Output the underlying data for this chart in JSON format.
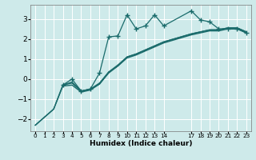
{
  "xlabel": "Humidex (Indice chaleur)",
  "bg_color": "#ceeaea",
  "line_color": "#1a6b6b",
  "grid_color": "#ffffff",
  "xlim": [
    -0.5,
    23.5
  ],
  "ylim": [
    -2.6,
    3.7
  ],
  "yticks": [
    -2,
    -1,
    0,
    1,
    2,
    3
  ],
  "xtick_positions": [
    0,
    1,
    2,
    3,
    4,
    5,
    6,
    7,
    8,
    9,
    10,
    11,
    12,
    13,
    14,
    17,
    18,
    19,
    20,
    21,
    22,
    23
  ],
  "xtick_labels": [
    "0",
    "1",
    "2",
    "3",
    "4",
    "5",
    "6",
    "7",
    "8",
    "9",
    "10",
    "11",
    "12",
    "13",
    "14",
    "17",
    "18",
    "19",
    "20",
    "21",
    "22",
    "23"
  ],
  "series": [
    {
      "x": [
        0,
        1,
        2,
        3,
        4,
        5,
        6,
        7,
        8,
        9,
        10,
        11,
        12,
        13,
        14,
        17,
        18,
        19,
        20,
        21,
        22,
        23
      ],
      "y": [
        -2.3,
        -1.9,
        -1.5,
        -0.35,
        -0.3,
        -0.65,
        -0.55,
        -0.25,
        0.3,
        0.65,
        1.05,
        1.2,
        1.4,
        1.6,
        1.8,
        2.2,
        2.3,
        2.4,
        2.4,
        2.5,
        2.5,
        2.3
      ],
      "marker": null,
      "linestyle": "-",
      "lw": 1.0
    },
    {
      "x": [
        0,
        1,
        2,
        3,
        4,
        5,
        6,
        7,
        8,
        9,
        10,
        11,
        12,
        13,
        14,
        17,
        18,
        19,
        20,
        21,
        22,
        23
      ],
      "y": [
        -2.3,
        -1.9,
        -1.5,
        -0.3,
        -0.2,
        -0.6,
        -0.5,
        -0.2,
        0.35,
        0.7,
        1.1,
        1.25,
        1.45,
        1.65,
        1.85,
        2.25,
        2.35,
        2.45,
        2.45,
        2.55,
        2.55,
        2.35
      ],
      "marker": null,
      "linestyle": "-",
      "lw": 1.0
    },
    {
      "x": [
        3,
        4,
        5,
        6,
        7,
        8,
        9,
        10,
        11,
        12,
        13,
        14,
        17,
        18,
        19,
        20,
        21,
        22,
        23
      ],
      "y": [
        -0.3,
        0.0,
        -0.6,
        -0.5,
        0.3,
        2.1,
        2.15,
        3.2,
        2.5,
        2.65,
        3.2,
        2.65,
        3.4,
        2.95,
        2.85,
        2.5,
        2.5,
        2.5,
        2.3
      ],
      "marker": "+",
      "linestyle": "-",
      "lw": 0.9
    },
    {
      "x": [
        3,
        4,
        5,
        6,
        7,
        8,
        9,
        10,
        11,
        12,
        13,
        14,
        17,
        18,
        19,
        20,
        21,
        22,
        23
      ],
      "y": [
        -0.3,
        -0.15,
        -0.6,
        -0.5,
        -0.25,
        0.35,
        0.65,
        1.1,
        1.25,
        1.45,
        1.65,
        1.85,
        2.25,
        2.35,
        2.45,
        2.45,
        2.55,
        2.55,
        2.35
      ],
      "marker": null,
      "linestyle": "-",
      "lw": 1.0
    }
  ]
}
